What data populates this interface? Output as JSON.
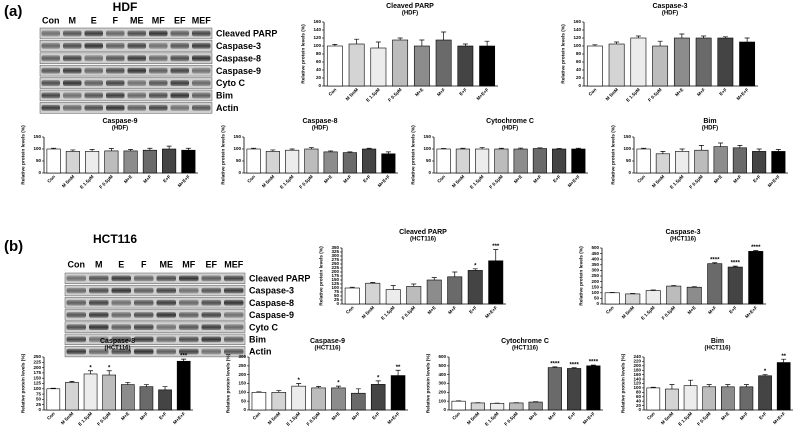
{
  "panels": [
    {
      "label": "(a)",
      "title": "HDF",
      "lanes": [
        "Con",
        "M",
        "E",
        "F",
        "ME",
        "MF",
        "EF",
        "MEF"
      ],
      "proteins": [
        "Cleaved PARP",
        "Caspase-3",
        "Caspase-8",
        "Caspase-9",
        "Cyto C",
        "Bim",
        "Actin"
      ]
    },
    {
      "label": "(b)",
      "title": "HCT116",
      "lanes": [
        "Con",
        "M",
        "E",
        "F",
        "ME",
        "MF",
        "EF",
        "MEF"
      ],
      "proteins": [
        "Cleaved PARP",
        "Caspase-3",
        "Caspase-8",
        "Caspase-9",
        "Cyto C",
        "Bim",
        "Actin"
      ]
    }
  ],
  "bar_colors": [
    "#ffffff",
    "#d4d4d4",
    "#ececec",
    "#bcbcbc",
    "#8c8c8c",
    "#6a6a6a",
    "#444444",
    "#000000"
  ],
  "chart_data": [
    {
      "type": "bar",
      "title": "Cleaved PARP",
      "subtitle": "(HDF)",
      "ylabel": "Relative protein levels (%)",
      "categories": [
        "Con",
        "M 5mM",
        "E 1.5μM",
        "F 0.5μM",
        "M+E",
        "M+F",
        "E+F",
        "M+E+F"
      ],
      "values": [
        100,
        105,
        95,
        115,
        100,
        115,
        100,
        100
      ],
      "errors": [
        4,
        12,
        15,
        5,
        15,
        20,
        5,
        12
      ],
      "annotations": [
        null,
        null,
        null,
        null,
        null,
        null,
        null,
        null
      ],
      "ylim": [
        0,
        160
      ],
      "yticks": [
        0,
        20,
        40,
        60,
        80,
        100,
        120,
        140,
        160
      ]
    },
    {
      "type": "bar",
      "title": "Caspase-3",
      "subtitle": "(HDF)",
      "ylabel": "Relative protein levels (%)",
      "categories": [
        "Con",
        "M 5mM",
        "E 1.5μM",
        "F 0.5μM",
        "M+E",
        "M+F",
        "E+F",
        "M+E+F"
      ],
      "values": [
        100,
        105,
        120,
        100,
        120,
        120,
        120,
        110
      ],
      "errors": [
        3,
        5,
        5,
        12,
        10,
        5,
        3,
        10
      ],
      "annotations": [
        null,
        null,
        null,
        null,
        null,
        null,
        null,
        null
      ],
      "ylim": [
        0,
        160
      ],
      "yticks": [
        0,
        20,
        40,
        60,
        80,
        100,
        120,
        140,
        160
      ]
    },
    {
      "type": "bar",
      "title": "Caspase-9",
      "subtitle": "(HDF)",
      "ylabel": "Relative protein levels (%)",
      "categories": [
        "Con",
        "M 5mM",
        "E 1.5μM",
        "F 0.5μM",
        "M+E",
        "M+F",
        "E+F",
        "M+E+F"
      ],
      "values": [
        100,
        90,
        90,
        92,
        92,
        95,
        100,
        95
      ],
      "errors": [
        3,
        6,
        8,
        10,
        6,
        8,
        12,
        8
      ],
      "annotations": [
        null,
        null,
        null,
        null,
        null,
        null,
        null,
        null
      ],
      "ylim": [
        0,
        150
      ],
      "yticks": [
        0,
        50,
        100,
        150
      ]
    },
    {
      "type": "bar",
      "title": "Caspase-8",
      "subtitle": "(HDF)",
      "ylabel": "Relative protein levels (%)",
      "categories": [
        "Con",
        "M 5mM",
        "E 1.5μM",
        "F 0.5μM",
        "M+E",
        "M+F",
        "E+F",
        "M+E+F"
      ],
      "values": [
        100,
        90,
        95,
        100,
        88,
        85,
        100,
        80
      ],
      "errors": [
        3,
        6,
        5,
        6,
        4,
        3,
        3,
        8
      ],
      "annotations": [
        null,
        null,
        null,
        null,
        null,
        null,
        null,
        null
      ],
      "ylim": [
        0,
        150
      ],
      "yticks": [
        0,
        50,
        100,
        150
      ]
    },
    {
      "type": "bar",
      "title": "Cytochrome C",
      "subtitle": "(HDF)",
      "ylabel": "Relative protein levels (%)",
      "categories": [
        "Con",
        "M 5mM",
        "E 1.5μM",
        "F 0.5μM",
        "M+E",
        "M+F",
        "E+F",
        "M+E+F"
      ],
      "values": [
        100,
        100,
        100,
        100,
        100,
        102,
        100,
        100
      ],
      "errors": [
        2,
        3,
        6,
        3,
        4,
        3,
        2,
        3
      ],
      "annotations": [
        null,
        null,
        null,
        null,
        null,
        null,
        null,
        null
      ],
      "ylim": [
        0,
        150
      ],
      "yticks": [
        0,
        50,
        100,
        150
      ]
    },
    {
      "type": "bar",
      "title": "Bim",
      "subtitle": "(HDF)",
      "ylabel": "Relative protein levels (%)",
      "categories": [
        "Con",
        "M 5mM",
        "E 1.5μM",
        "F 0.5μM",
        "M+E",
        "M+F",
        "E+F",
        "M+E+F"
      ],
      "values": [
        100,
        80,
        90,
        95,
        110,
        105,
        90,
        90
      ],
      "errors": [
        3,
        10,
        10,
        20,
        15,
        10,
        10,
        8
      ],
      "annotations": [
        null,
        null,
        null,
        null,
        null,
        null,
        null,
        null
      ],
      "ylim": [
        0,
        150
      ],
      "yticks": [
        0,
        50,
        100,
        150
      ]
    },
    {
      "type": "bar",
      "title": "Cleaved PARP",
      "subtitle": "(HCT116)",
      "ylabel": "Relative protein levels (%)",
      "categories": [
        "Con",
        "M 5mM",
        "E 1.5μM",
        "F 0.5μM",
        "M+E",
        "M+F",
        "E+F",
        "M+E+F"
      ],
      "values": [
        100,
        130,
        90,
        110,
        150,
        170,
        210,
        270
      ],
      "errors": [
        5,
        5,
        25,
        15,
        15,
        30,
        10,
        70
      ],
      "annotations": [
        null,
        null,
        null,
        null,
        null,
        null,
        "*",
        "***"
      ],
      "ylim": [
        0,
        350
      ],
      "yticks": [
        0,
        25,
        50,
        75,
        100,
        125,
        150,
        175,
        200,
        225,
        250,
        275,
        300,
        325,
        350
      ]
    },
    {
      "type": "bar",
      "title": "Caspase-3",
      "subtitle": "(HCT116)",
      "ylabel": "Relative protein levels (%)",
      "categories": [
        "Con",
        "M 5mM",
        "E 1.5μM",
        "F 0.5μM",
        "M+E",
        "M+F",
        "E+F",
        "M+E+F"
      ],
      "values": [
        100,
        90,
        120,
        160,
        150,
        360,
        330,
        470
      ],
      "errors": [
        3,
        4,
        5,
        4,
        4,
        8,
        8,
        8
      ],
      "annotations": [
        null,
        null,
        null,
        null,
        null,
        "****",
        "****",
        "****"
      ],
      "ylim": [
        0,
        500
      ],
      "yticks": [
        0,
        50,
        100,
        150,
        200,
        250,
        300,
        350,
        400,
        450,
        500
      ]
    },
    {
      "type": "bar",
      "title": "Caspase-8",
      "subtitle": "(HCT116)",
      "ylabel": "Relative protein levels (%)",
      "categories": [
        "Con",
        "M 5mM",
        "E 1.5μM",
        "F 0.5μM",
        "M+E",
        "M+F",
        "E+F",
        "M+E+F"
      ],
      "values": [
        100,
        130,
        170,
        165,
        120,
        110,
        95,
        230
      ],
      "errors": [
        3,
        5,
        15,
        20,
        10,
        10,
        15,
        10
      ],
      "annotations": [
        null,
        null,
        "*",
        "*",
        null,
        null,
        null,
        "***"
      ],
      "ylim": [
        0,
        250
      ],
      "yticks": [
        0,
        25,
        50,
        75,
        100,
        125,
        150,
        175,
        200,
        225,
        250
      ]
    },
    {
      "type": "bar",
      "title": "Caspase-9",
      "subtitle": "(HCT116)",
      "ylabel": "Relative protein levels (%)",
      "categories": [
        "Con",
        "M 5mM",
        "E 1.5μM",
        "F 0.5μM",
        "M+E",
        "M+F",
        "E+F",
        "M+E+F"
      ],
      "values": [
        100,
        100,
        135,
        125,
        125,
        95,
        145,
        195
      ],
      "errors": [
        3,
        10,
        15,
        8,
        10,
        25,
        20,
        30
      ],
      "annotations": [
        null,
        null,
        "*",
        null,
        "*",
        null,
        "*",
        "**"
      ],
      "ylim": [
        0,
        300
      ],
      "yticks": [
        0,
        50,
        100,
        150,
        200,
        250,
        300
      ]
    },
    {
      "type": "bar",
      "title": "Cytochrome C",
      "subtitle": "(HCT116)",
      "ylabel": "Relative protein levels (%)",
      "categories": [
        "Con",
        "M 5mM",
        "E 1.5μM",
        "F 0.5μM",
        "M+E",
        "M+F",
        "E+F",
        "M+E+F"
      ],
      "values": [
        100,
        80,
        75,
        80,
        90,
        480,
        470,
        500
      ],
      "errors": [
        3,
        3,
        3,
        3,
        3,
        8,
        8,
        8
      ],
      "annotations": [
        null,
        null,
        null,
        null,
        null,
        "****",
        "****",
        "****"
      ],
      "ylim": [
        0,
        600
      ],
      "yticks": [
        0,
        100,
        200,
        300,
        400,
        500,
        600
      ]
    },
    {
      "type": "bar",
      "title": "Bim",
      "subtitle": "(HCT116)",
      "ylabel": "Relative protein levels (%)",
      "categories": [
        "Con",
        "M 5mM",
        "E 1.5μM",
        "F 0.5μM",
        "M+E",
        "M+F",
        "E+F",
        "M+E+F"
      ],
      "values": [
        100,
        95,
        110,
        105,
        105,
        105,
        155,
        215
      ],
      "errors": [
        3,
        20,
        25,
        10,
        10,
        10,
        5,
        15
      ],
      "annotations": [
        null,
        null,
        null,
        null,
        null,
        null,
        "*",
        "**"
      ],
      "ylim": [
        0,
        240
      ],
      "yticks": [
        0,
        20,
        40,
        60,
        80,
        100,
        120,
        140,
        160,
        180,
        200,
        220,
        240
      ]
    }
  ]
}
